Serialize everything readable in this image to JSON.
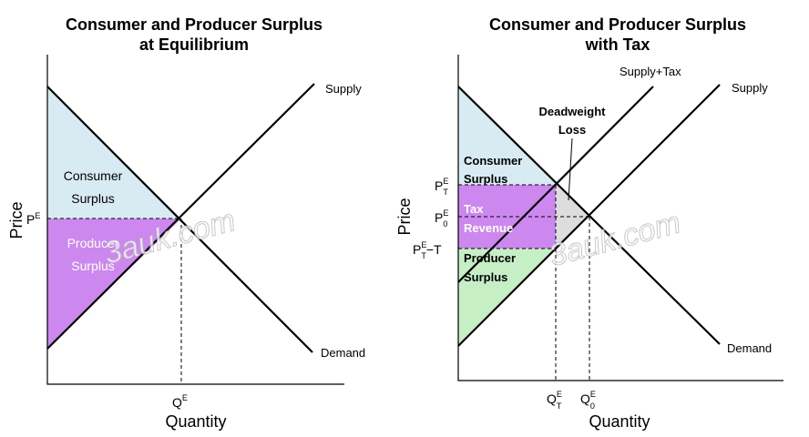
{
  "left": {
    "title": [
      "Consumer and Producer Surplus",
      "at Equilibrium"
    ],
    "supply_label": "Supply",
    "demand_label": "Demand",
    "consumer_surplus": [
      "Consumer",
      "Surplus"
    ],
    "producer_surplus": [
      "Producer",
      "Surplus"
    ],
    "y_axis_label": "Price",
    "x_axis_label": "Quantity",
    "price_tick": {
      "base": "P",
      "sup": "E"
    },
    "quantity_tick": {
      "base": "Q",
      "sup": "E"
    },
    "watermark": "3auk.com"
  },
  "right": {
    "title": [
      "Consumer and Producer Surplus",
      "with Tax"
    ],
    "supply_tax_label": "Supply+Tax",
    "supply_label": "Supply",
    "demand_label": "Demand",
    "deadweight_loss": [
      "Deadweight",
      "Loss"
    ],
    "consumer_surplus": [
      "Consumer",
      "Surplus"
    ],
    "tax_revenue": [
      "Tax",
      "Revenue"
    ],
    "producer_surplus": [
      "Producer",
      "Surplus"
    ],
    "y_axis_label": "Price",
    "x_axis_label": "Quantity",
    "price_ticks": [
      {
        "base": "P",
        "sup": "E",
        "sub": "T"
      },
      {
        "base": "P",
        "sup": "E",
        "sub": "0"
      },
      {
        "base": "P",
        "sup": "E",
        "sub": "T",
        "suffix": "−T"
      }
    ],
    "quantity_ticks": [
      {
        "base": "Q",
        "sup": "E",
        "sub": "T"
      },
      {
        "base": "Q",
        "sup": "E",
        "sub": "0"
      }
    ],
    "watermark": "3auk.com"
  }
}
